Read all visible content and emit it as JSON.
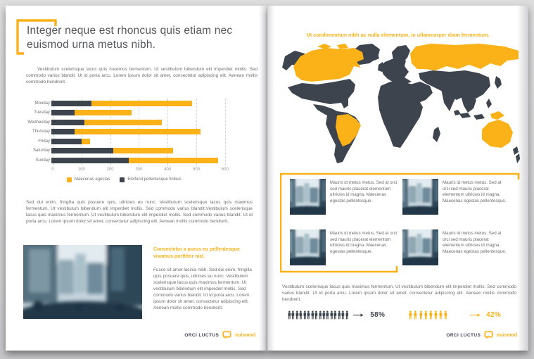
{
  "colors": {
    "yellow": "#FBB118",
    "dark": "#3E444E",
    "title_text": "#55575C",
    "body_text": "#6D6E71"
  },
  "left_page": {
    "title": "Integer neque est rhoncus quis etiam nec euismod urna metus nibh.",
    "intro": "Vestibulum scelerisque lacus quis maximus fermentum. Ut vestibulum bibendum elit imperdiet mollis. Sed commodo varius blandit. Ut id porta arcu. Lorem ipsum dolor sit amet, consectetur adipiscing elit. Aenean mollis commodo hendrerit.",
    "body": "Sed dui enim, fringilla quis posuere quis, ultricies eu nunc. Vestibulum scelerisque lacus quis maximus fermentum. Ut vestibulum bibendum elit imperdiet mollis. Sed commodo varius blandit.Vestibulum scelerisque lacus quis maximus fermentum. Ut vestibulum bibendum elit imperdiet mollis. Sed commodo varius blandit. Ut id porta arcu. Lorem ipsum dolor sit amet, consectetur adipiscing elit. Aenean mollis commodo hendrerit.",
    "subheading": "Consectetur a purus eu pellentesque vivamus porttitor nisl.",
    "side_text": "Fusce sit amet lacinia nibh. Sed dui enim, fringilla quis posuere quis, ultricies eu nunc. Vestibulum scelerisque lacus quis maximus fermentum. Ut vestibulum bibendum elit imperdiet mollis. Sed commodo varius blandit. Ut id porta arcu. Lorem ipsum dolor sit amet, consectetur adipiscing elit. Aenean mollis commodo hendrerit.",
    "footer": {
      "brand": "ORCI LUCTUS",
      "logo_text": "euismod"
    }
  },
  "chart_data": [
    {
      "type": "bar",
      "orientation": "horizontal",
      "stacked": true,
      "categories": [
        "Monday",
        "Tuesday",
        "Wednesday",
        "Thursday",
        "Friday",
        "Saturday",
        "Sunday"
      ],
      "series": [
        {
          "name": "Eleifend pellentesque finibus",
          "color": "#3E444E",
          "values": [
            140,
            80,
            115,
            80,
            105,
            215,
            270
          ]
        },
        {
          "name": "Maecenas egestas",
          "color": "#FBB118",
          "values": [
            350,
            200,
            270,
            440,
            30,
            210,
            310
          ]
        }
      ],
      "x_ticks": [
        0,
        100,
        200,
        300,
        400,
        500,
        600
      ],
      "xlim": [
        0,
        620
      ],
      "grid": "dashed-vertical",
      "legend_position": "bottom",
      "legend": [
        {
          "label": "Maecenas egestas",
          "color": "#FBB118"
        },
        {
          "label": "Eleifend pellentesque finibus",
          "color": "#3E444E"
        }
      ],
      "title": "",
      "xlabel": "",
      "ylabel": ""
    },
    {
      "type": "pictograph",
      "items": [
        {
          "label": "58%",
          "icon_count": 16,
          "color": "#3E444E"
        },
        {
          "label": "42%",
          "icon_count": 8,
          "color": "#FBB118"
        }
      ]
    }
  ],
  "right_page": {
    "heading": "Ut condimentum nibh ac nulla elementum, in ullamcorper diam fermentum.",
    "map": {
      "base_color": "#3E444E",
      "highlight_color": "#FBB118",
      "highlighted_regions": [
        "Canada",
        "Russia",
        "Brazil",
        "Australia",
        "New Guinea"
      ]
    },
    "cards": [
      {
        "text": "Mauris id metus metus. Sed at orci sed mauris placerat elementum ultricies id magna. Maecenas egestas pellentesque."
      },
      {
        "text": "Mauris id metus metus. Sed at orci sed mauris placerat elementum ultricies id magna. Maecenas egestas pellentesque."
      },
      {
        "text": "Mauris id metus metus. Sed at orci sed mauris placerat elementum ultricies id magna. Maecenas egestas pellentesque."
      },
      {
        "text": "Mauris id metus metus. Sed at orci sed mauris placerat elementum ultricies id magna. Maecenas egestas pellentesque."
      }
    ],
    "body": "Vestibulum scelerisque lacus quis maximus fermentum. Ut vestibulum bibendum elit imperdiet mollis. Sed commodo varius blandit. Ut id porta arcu. Lorem ipsum dolor sit amet, consectetur adipiscing elit. Aenean mollis commodo hendrerit.",
    "footer": {
      "brand": "ORCI LUCTUS",
      "logo_text": "euismod"
    }
  }
}
